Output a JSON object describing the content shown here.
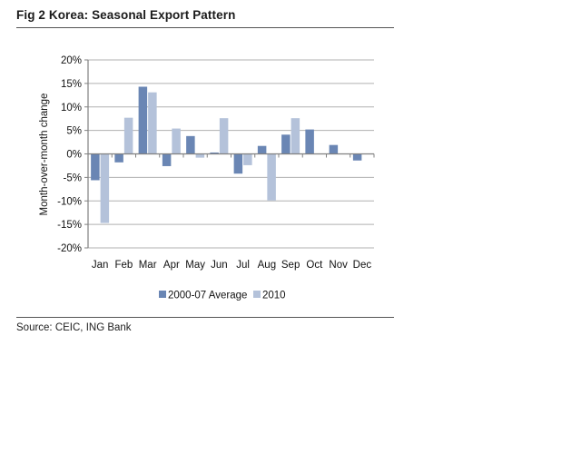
{
  "figure": {
    "title": "Fig 2  Korea: Seasonal Export Pattern",
    "source": "Source: CEIC, ING Bank"
  },
  "colors": {
    "series_avg": "#6a86b4",
    "series_2010": "#b4c2da",
    "grid": "#b0b0b0",
    "axis": "#808080"
  },
  "chart_data": {
    "type": "bar",
    "title": "Korea: Seasonal Export Pattern",
    "xlabel": "",
    "ylabel": "Month-over-month change",
    "ylim": [
      -20,
      20
    ],
    "yticks": [
      20,
      15,
      10,
      5,
      0,
      -5,
      -10,
      -15,
      -20
    ],
    "ytick_labels": [
      "20%",
      "15%",
      "10%",
      "5%",
      "0%",
      "-5%",
      "-10%",
      "-15%",
      "-20%"
    ],
    "grid": true,
    "legend_position": "bottom",
    "categories": [
      "Jan",
      "Feb",
      "Mar",
      "Apr",
      "May",
      "Jun",
      "Jul",
      "Aug",
      "Sep",
      "Oct",
      "Nov",
      "Dec"
    ],
    "series": [
      {
        "name": "2000-07 Average",
        "values": [
          -5.6,
          -1.8,
          14.3,
          -2.6,
          3.8,
          0.3,
          -4.2,
          1.7,
          4.1,
          5.2,
          1.9,
          -1.4
        ]
      },
      {
        "name": "2010",
        "values": [
          -14.7,
          7.7,
          13.1,
          5.4,
          -0.8,
          7.6,
          -2.4,
          -9.9,
          7.6,
          null,
          null,
          null
        ]
      }
    ]
  }
}
